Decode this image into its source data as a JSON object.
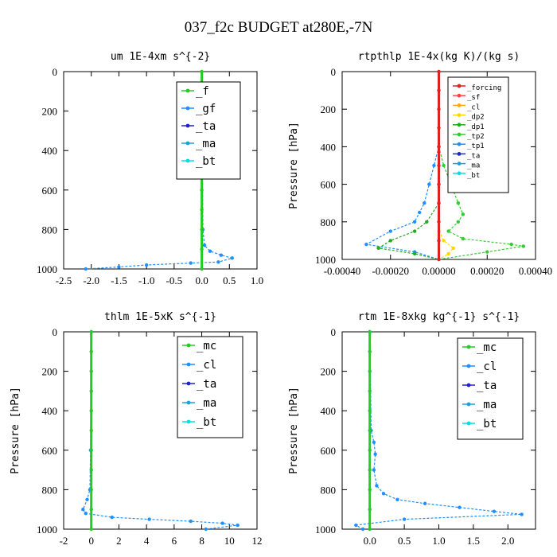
{
  "figure_title": "037_f2c  BUDGET at280E,-7N",
  "colors": {
    "f": "#22cc22",
    "gf": "#1e90ff",
    "ta": "#2222cc",
    "ma": "#1aa3d6",
    "bt": "#00e0e0",
    "forcing": "#dd2222",
    "sf": "#ff4444",
    "cl_small": "#ffaa00",
    "dp2": "#ffd700",
    "dp1": "#22aa22",
    "tp2": "#33cc33",
    "tp1": "#1e90ff",
    "mc": "#22cc22",
    "cl": "#1e90ff"
  },
  "chart_data": [
    {
      "type": "line",
      "title": "um  1E-4xm s^{-2}",
      "ylabel": "",
      "xlim": [
        -2.5,
        1.0
      ],
      "ylim": [
        1000,
        0
      ],
      "xticks": [
        "-2.5",
        "-2.0",
        "-1.5",
        "-1.0",
        "-0.5",
        "0.0",
        "0.5",
        "1.0"
      ],
      "xtick_values": [
        -2.5,
        -2.0,
        -1.5,
        -1.0,
        -0.5,
        0.0,
        0.5,
        1.0
      ],
      "yticks": [
        "0",
        "200",
        "400",
        "600",
        "800",
        "1000"
      ],
      "ytick_values": [
        0,
        200,
        400,
        600,
        800,
        1000
      ],
      "legend": [
        "_f",
        "_gf",
        "_ta",
        "_ma",
        "_bt"
      ],
      "series": [
        {
          "name": "_gf",
          "color_key": "gf",
          "x": [
            0.0,
            0.01,
            0.02,
            0.05,
            0.15,
            0.35,
            0.55,
            0.3,
            -0.2,
            -1.0,
            -1.5,
            -2.1
          ],
          "y": [
            0,
            500,
            800,
            880,
            910,
            930,
            945,
            965,
            970,
            980,
            990,
            1000
          ]
        },
        {
          "name": "_f",
          "color_key": "f",
          "x": [
            0,
            0,
            0,
            0,
            0,
            0,
            0,
            0,
            0,
            0,
            0
          ],
          "y": [
            0,
            100,
            200,
            300,
            400,
            500,
            600,
            700,
            800,
            900,
            1000
          ]
        }
      ]
    },
    {
      "type": "line",
      "title": "rtpthlp  1E-4x(kg K)/(kg s)",
      "ylabel": "Pressure [hPa]",
      "xlim": [
        -0.0004,
        0.0004
      ],
      "ylim": [
        1000,
        0
      ],
      "xticks": [
        "-0.00040",
        "-0.00020",
        "0.00000",
        "0.00020",
        "0.00040"
      ],
      "xtick_values": [
        -0.0004,
        -0.0002,
        0.0,
        0.0002,
        0.0004
      ],
      "yticks": [
        "0",
        "200",
        "400",
        "600",
        "800",
        "1000"
      ],
      "ytick_values": [
        0,
        200,
        400,
        600,
        800,
        1000
      ],
      "legend": [
        "_forcing",
        "_sf",
        "_cl",
        "_dp2",
        "_dp1",
        "_tp2",
        "_tp1",
        "_ta",
        "_ma",
        "_bt"
      ],
      "series": [
        {
          "name": "_tp2",
          "color_key": "tp2",
          "x": [
            0.0,
            2e-05,
            5e-05,
            8e-05,
            0.0001,
            8e-05,
            4e-05,
            0.0001,
            0.0003,
            0.00035,
            0.0002,
            0.0
          ],
          "y": [
            400,
            500,
            600,
            700,
            760,
            800,
            850,
            890,
            920,
            930,
            960,
            1000
          ]
        },
        {
          "name": "_tp1",
          "color_key": "tp1",
          "x": [
            0.0,
            -2e-05,
            -4e-05,
            -6e-05,
            -8e-05,
            -0.0001,
            -0.0002,
            -0.0003,
            -0.0001,
            0.0
          ],
          "y": [
            400,
            500,
            600,
            700,
            750,
            800,
            850,
            920,
            960,
            1000
          ]
        },
        {
          "name": "_dp1",
          "color_key": "dp1",
          "x": [
            0.0,
            -5e-05,
            -0.0001,
            -0.0002,
            -0.00025,
            -0.0001,
            0.0
          ],
          "y": [
            700,
            800,
            850,
            900,
            940,
            970,
            1000
          ]
        },
        {
          "name": "_dp2",
          "color_key": "dp2",
          "x": [
            0.0,
            2e-05,
            6e-05,
            4e-05,
            0.0
          ],
          "y": [
            850,
            900,
            940,
            970,
            1000
          ]
        },
        {
          "name": "_forcing",
          "color_key": "forcing",
          "x": [
            0,
            0,
            0,
            0,
            0,
            0,
            0,
            0,
            0,
            0,
            0
          ],
          "y": [
            0,
            100,
            200,
            300,
            400,
            500,
            600,
            700,
            800,
            900,
            1000
          ]
        }
      ]
    },
    {
      "type": "line",
      "title": "thlm  1E-5xK s^{-1}",
      "ylabel": "Pressure [hPa]",
      "xlim": [
        -2,
        12
      ],
      "ylim": [
        1000,
        0
      ],
      "xticks": [
        "-2",
        "0",
        "2",
        "4",
        "6",
        "8",
        "10",
        "12"
      ],
      "xtick_values": [
        -2,
        0,
        2,
        4,
        6,
        8,
        10,
        12
      ],
      "yticks": [
        "0",
        "200",
        "400",
        "600",
        "800",
        "1000"
      ],
      "ytick_values": [
        0,
        200,
        400,
        600,
        800,
        1000
      ],
      "legend": [
        "_mc",
        "_cl",
        "_ta",
        "_ma",
        "_bt"
      ],
      "series": [
        {
          "name": "_cl",
          "color_key": "cl",
          "x": [
            0.0,
            -0.05,
            -0.1,
            -0.3,
            -0.6,
            -0.4,
            1.5,
            4.2,
            7.2,
            9.5,
            10.6,
            8.3
          ],
          "y": [
            0,
            600,
            800,
            850,
            900,
            920,
            940,
            950,
            960,
            970,
            980,
            1000
          ]
        },
        {
          "name": "_mc",
          "color_key": "mc",
          "x": [
            0,
            0,
            0,
            0,
            0,
            0,
            0,
            0,
            0,
            0,
            0
          ],
          "y": [
            0,
            100,
            200,
            300,
            400,
            500,
            600,
            700,
            800,
            900,
            1000
          ]
        }
      ]
    },
    {
      "type": "line",
      "title": "rtm  1E-8xkg kg^{-1} s^{-1}",
      "ylabel": "Pressure [hPa]",
      "xlim": [
        -0.4,
        2.4
      ],
      "ylim": [
        1000,
        0
      ],
      "xticks": [
        "0.0",
        "0.5",
        "1.0",
        "1.5",
        "2.0"
      ],
      "xtick_values": [
        0.0,
        0.5,
        1.0,
        1.5,
        2.0
      ],
      "yticks": [
        "0",
        "200",
        "400",
        "600",
        "800",
        "1000"
      ],
      "ytick_values": [
        0,
        200,
        400,
        600,
        800,
        1000
      ],
      "legend": [
        "_mc",
        "_cl",
        "_ta",
        "_ma",
        "_bt"
      ],
      "series": [
        {
          "name": "_cl",
          "color_key": "cl",
          "x": [
            0.0,
            0.02,
            0.06,
            0.08,
            0.06,
            0.1,
            0.2,
            0.4,
            0.8,
            1.3,
            1.8,
            2.2,
            0.5,
            -0.2,
            -0.1
          ],
          "y": [
            0,
            500,
            560,
            620,
            700,
            780,
            820,
            850,
            870,
            890,
            910,
            925,
            950,
            980,
            1000
          ]
        },
        {
          "name": "_mc",
          "color_key": "mc",
          "x": [
            0,
            0,
            0,
            0,
            0,
            0,
            0,
            0,
            0,
            0,
            0
          ],
          "y": [
            0,
            100,
            200,
            300,
            400,
            500,
            600,
            700,
            800,
            900,
            1000
          ]
        }
      ]
    }
  ]
}
